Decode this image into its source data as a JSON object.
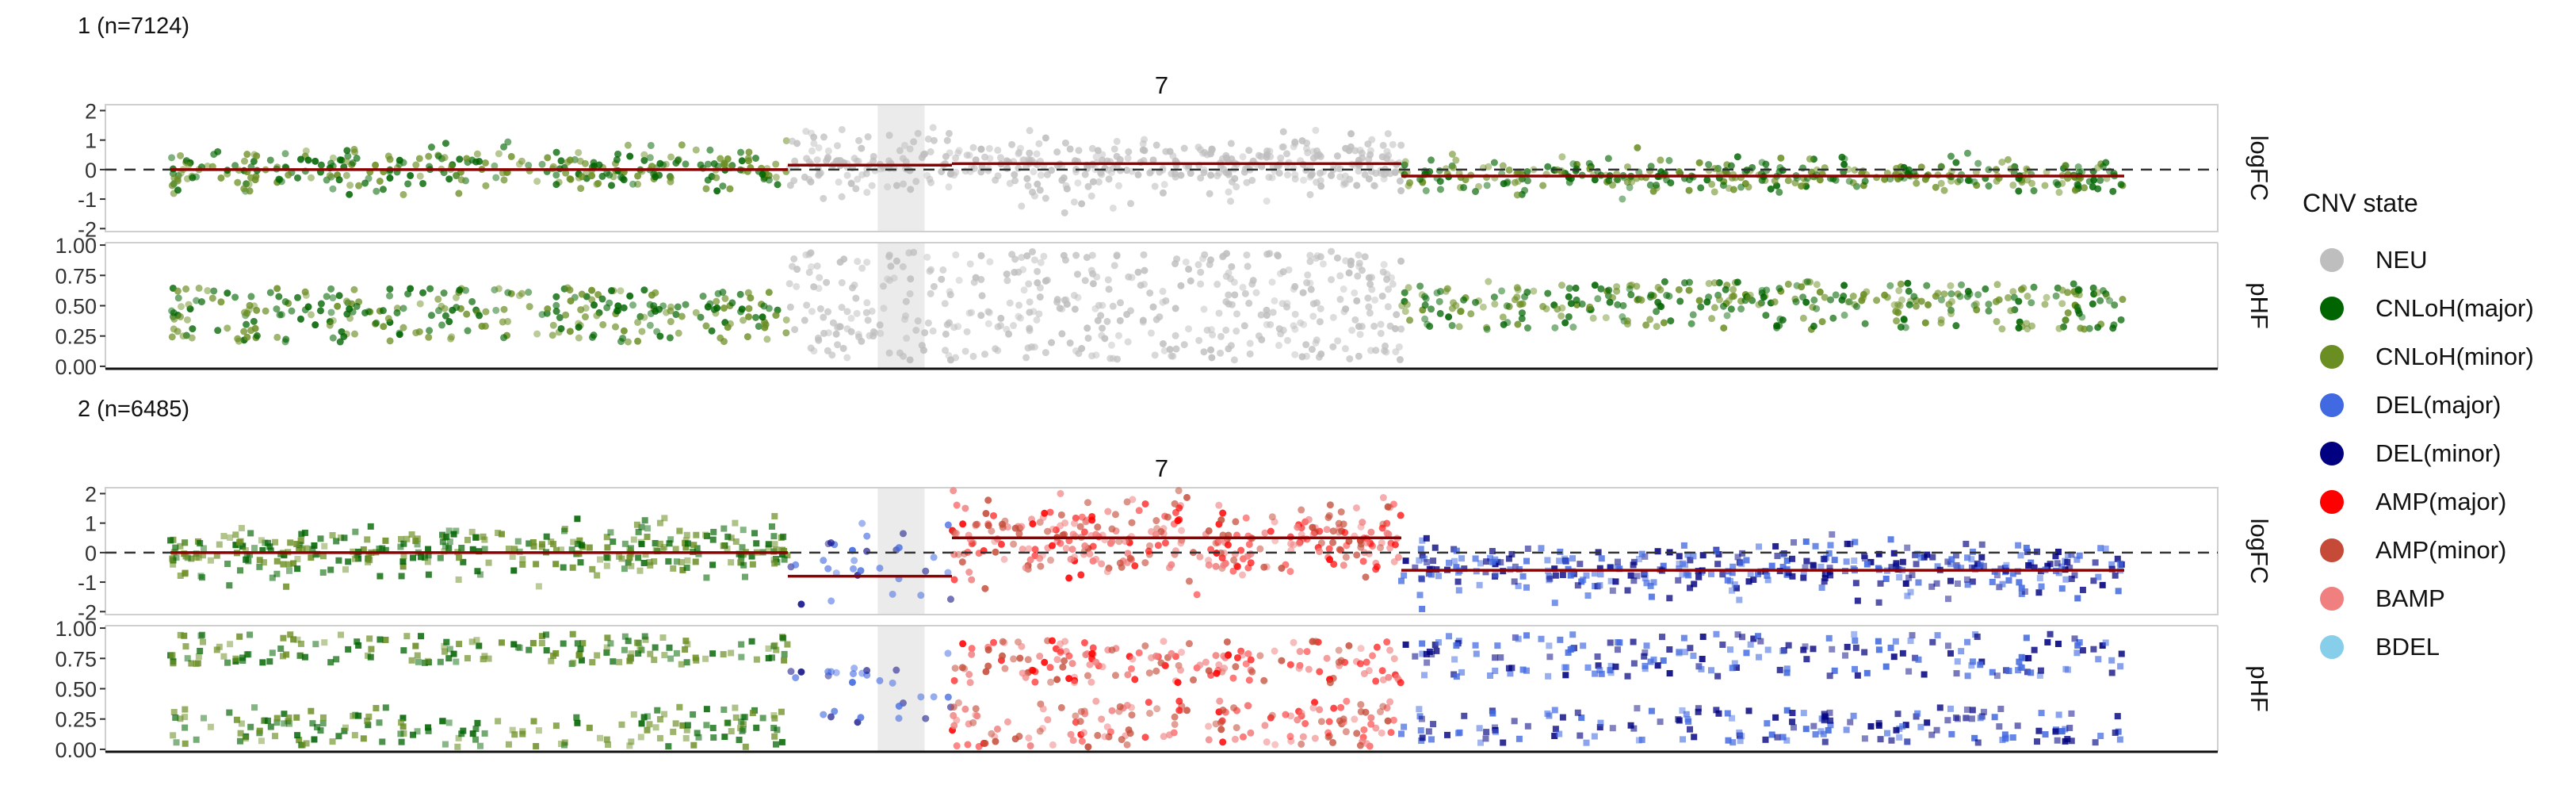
{
  "colors": {
    "NEU": "#BEBEBE",
    "CNLoH(major)": "#006400",
    "CNLoH(minor)": "#6B8E23",
    "DEL(major)": "#4169E1",
    "DEL(minor)": "#000080",
    "AMP(major)": "#FF0000",
    "AMP(minor)": "#C54B38",
    "BAMP": "#F08080",
    "BDEL": "#87CEEB",
    "segment_line": "#8B0000"
  },
  "legend": {
    "title": "CNV state",
    "items": [
      "NEU",
      "CNLoH(major)",
      "CNLoH(minor)",
      "DEL(major)",
      "DEL(minor)",
      "AMP(major)",
      "AMP(minor)",
      "BAMP",
      "BDEL"
    ]
  },
  "chart_data": [
    {
      "type": "scatter",
      "title": "1 (n=7124)",
      "chromosome": "7",
      "x_range": [
        0,
        100
      ],
      "centromere": [
        36.2,
        38.6
      ],
      "panels": [
        {
          "strip": "logFC",
          "ylim": [
            -2.1,
            2.2
          ],
          "yticks": [
            -2,
            -1,
            0,
            1,
            2
          ],
          "tick_labels": [
            "-2",
            "-1",
            "0",
            "1",
            "2"
          ],
          "reference_line": 0
        },
        {
          "strip": "pHF",
          "ylim": [
            -0.02,
            1.02
          ],
          "yticks": [
            0,
            0.25,
            0.5,
            0.75,
            1
          ],
          "tick_labels": [
            "0.00",
            "0.25",
            "0.50",
            "0.75",
            "1.00"
          ]
        }
      ],
      "segments": [
        {
          "x": [
            0,
            31.6
          ],
          "logFC": 0.0
        },
        {
          "x": [
            31.6,
            40
          ],
          "logFC": 0.15
        },
        {
          "x": [
            40,
            63
          ],
          "logFC": 0.2
        },
        {
          "x": [
            63,
            100
          ],
          "logFC": -0.22
        }
      ],
      "point_groups": [
        {
          "x": [
            0,
            31.6
          ],
          "logFC_mean": 0.0,
          "logFC_sd": 0.35,
          "states": [
            "CNLoH(major)",
            "CNLoH(minor)"
          ],
          "n": 300,
          "shape": "circle",
          "phf_clusters": [
            [
              0.2,
              0.5
            ],
            [
              0.4,
              0.65
            ]
          ]
        },
        {
          "x": [
            31.6,
            63
          ],
          "logFC_mean": 0.15,
          "logFC_sd": 0.5,
          "states": [
            "NEU"
          ],
          "n": 440,
          "shape": "circle",
          "phf_clusters": [
            [
              0.05,
              0.95
            ]
          ]
        },
        {
          "x": [
            63,
            100
          ],
          "logFC_mean": -0.2,
          "logFC_sd": 0.3,
          "states": [
            "CNLoH(major)",
            "CNLoH(minor)"
          ],
          "n": 340,
          "shape": "circle",
          "phf_clusters": [
            [
              0.3,
              0.6
            ],
            [
              0.5,
              0.7
            ]
          ]
        }
      ]
    },
    {
      "type": "scatter",
      "title": "2 (n=6485)",
      "chromosome": "7",
      "x_range": [
        0,
        100
      ],
      "centromere": [
        36.2,
        38.6
      ],
      "panels": [
        {
          "strip": "logFC",
          "ylim": [
            -2.1,
            2.2
          ],
          "yticks": [
            -2,
            -1,
            0,
            1,
            2
          ],
          "tick_labels": [
            "-2",
            "-1",
            "0",
            "1",
            "2"
          ],
          "reference_line": 0
        },
        {
          "strip": "pHF",
          "ylim": [
            -0.02,
            1.02
          ],
          "yticks": [
            0,
            0.25,
            0.5,
            0.75,
            1
          ],
          "tick_labels": [
            "0.00",
            "0.25",
            "0.50",
            "0.75",
            "1.00"
          ]
        }
      ],
      "segments": [
        {
          "x": [
            0,
            31.6
          ],
          "logFC": 0.0
        },
        {
          "x": [
            31.6,
            40
          ],
          "logFC": -0.8
        },
        {
          "x": [
            40,
            63
          ],
          "logFC": 0.5
        },
        {
          "x": [
            63,
            100
          ],
          "logFC": -0.6
        }
      ],
      "point_groups": [
        {
          "x": [
            0,
            31.6
          ],
          "logFC_mean": 0.05,
          "logFC_sd": 0.45,
          "states": [
            "CNLoH(major)",
            "CNLoH(minor)"
          ],
          "n": 330,
          "shape": "square",
          "phf_clusters": [
            [
              0.7,
              0.95
            ],
            [
              0.02,
              0.35
            ]
          ]
        },
        {
          "x": [
            31.6,
            40
          ],
          "logFC_mean": -0.3,
          "logFC_sd": 0.7,
          "states": [
            "DEL(major)",
            "DEL(minor)"
          ],
          "n": 30,
          "shape": "circle",
          "phf_clusters": [
            [
              0.2,
              0.8
            ]
          ]
        },
        {
          "x": [
            40,
            63
          ],
          "logFC_mean": 0.45,
          "logFC_sd": 0.6,
          "states": [
            "AMP(major)",
            "AMP(minor)",
            "BAMP"
          ],
          "n": 320,
          "shape": "circle",
          "phf_clusters": [
            [
              0.55,
              0.9
            ],
            [
              0.02,
              0.4
            ]
          ]
        },
        {
          "x": [
            63,
            100
          ],
          "logFC_mean": -0.55,
          "logFC_sd": 0.45,
          "states": [
            "DEL(major)",
            "DEL(minor)"
          ],
          "n": 360,
          "shape": "square",
          "phf_clusters": [
            [
              0.6,
              0.95
            ],
            [
              0.05,
              0.35
            ]
          ]
        }
      ]
    }
  ]
}
